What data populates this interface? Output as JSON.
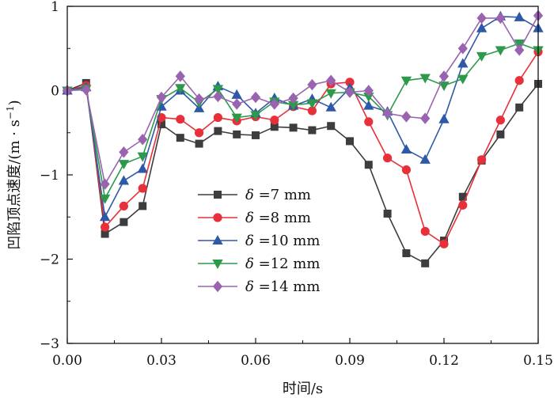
{
  "chart_data": {
    "type": "line",
    "title": "",
    "xlabel": "时间/s",
    "ylabel_main": "凹陷顶点速度/(m · s",
    "ylabel_exp": "−1",
    "ylabel_close": ")",
    "xlim": [
      0,
      0.15
    ],
    "ylim": [
      -3,
      1
    ],
    "xticks": [
      0.0,
      0.03,
      0.06,
      0.09,
      0.12,
      0.15
    ],
    "xtick_labels": [
      "0.00",
      "0.03",
      "0.06",
      "0.09",
      "0.12",
      "0.15"
    ],
    "yticks": [
      -3,
      -2,
      -1,
      0,
      1
    ],
    "ytick_labels": [
      "−3",
      "−2",
      "−1",
      "0",
      "1"
    ],
    "legend_position": "center-left",
    "x": [
      0.0,
      0.006,
      0.012,
      0.018,
      0.024,
      0.03,
      0.036,
      0.042,
      0.048,
      0.054,
      0.06,
      0.066,
      0.072,
      0.078,
      0.084,
      0.09,
      0.096,
      0.102,
      0.108,
      0.114,
      0.12,
      0.126,
      0.132,
      0.138,
      0.144,
      0.15
    ],
    "series": [
      {
        "name": "δ =7 mm",
        "symbol": "δ",
        "label_rest": " =7 mm",
        "color": "#3d3d3d",
        "marker": "square",
        "values": [
          0.0,
          0.09,
          -1.7,
          -1.56,
          -1.37,
          -0.4,
          -0.56,
          -0.63,
          -0.48,
          -0.52,
          -0.53,
          -0.43,
          -0.44,
          -0.47,
          -0.42,
          -0.6,
          -0.88,
          -1.46,
          -1.93,
          -2.05,
          -1.78,
          -1.26,
          -0.83,
          -0.52,
          -0.2,
          0.08
        ]
      },
      {
        "name": "δ =8 mm",
        "symbol": "δ",
        "label_rest": " =8 mm",
        "color": "#e8303a",
        "marker": "circle",
        "values": [
          0.0,
          0.06,
          -1.62,
          -1.37,
          -1.16,
          -0.32,
          -0.34,
          -0.5,
          -0.32,
          -0.36,
          -0.31,
          -0.35,
          -0.19,
          -0.24,
          0.08,
          0.1,
          -0.37,
          -0.8,
          -0.94,
          -1.67,
          -1.82,
          -1.36,
          -0.82,
          -0.35,
          0.12,
          0.46
        ]
      },
      {
        "name": "δ =10 mm",
        "symbol": "δ",
        "label_rest": " =10 mm",
        "color": "#2e59a8",
        "marker": "triangle-up",
        "values": [
          0.0,
          0.04,
          -1.5,
          -1.07,
          -0.93,
          -0.19,
          0.0,
          -0.21,
          0.05,
          -0.05,
          -0.27,
          -0.09,
          -0.18,
          -0.1,
          -0.2,
          0.03,
          -0.18,
          -0.25,
          -0.7,
          -0.82,
          -0.34,
          0.32,
          0.74,
          0.88,
          0.87,
          0.74
        ]
      },
      {
        "name": "δ =12 mm",
        "symbol": "δ",
        "label_rest": " =12 mm",
        "color": "#2c9a4a",
        "marker": "triangle-down",
        "values": [
          0.0,
          0.02,
          -1.28,
          -0.87,
          -0.78,
          -0.1,
          0.03,
          -0.14,
          0.02,
          -0.32,
          -0.29,
          -0.13,
          -0.17,
          -0.15,
          -0.03,
          -0.02,
          -0.07,
          -0.29,
          0.12,
          0.15,
          0.06,
          0.14,
          0.41,
          0.48,
          0.56,
          0.48
        ]
      },
      {
        "name": "δ =14 mm",
        "symbol": "δ",
        "label_rest": " =14 mm",
        "color": "#9a63b0",
        "marker": "diamond",
        "values": [
          0.0,
          0.01,
          -1.11,
          -0.73,
          -0.58,
          -0.08,
          0.17,
          -0.1,
          -0.07,
          -0.16,
          -0.08,
          -0.16,
          -0.09,
          0.07,
          0.12,
          -0.02,
          0.0,
          -0.27,
          -0.31,
          -0.33,
          0.17,
          0.5,
          0.86,
          0.86,
          0.48,
          0.89
        ]
      }
    ]
  }
}
